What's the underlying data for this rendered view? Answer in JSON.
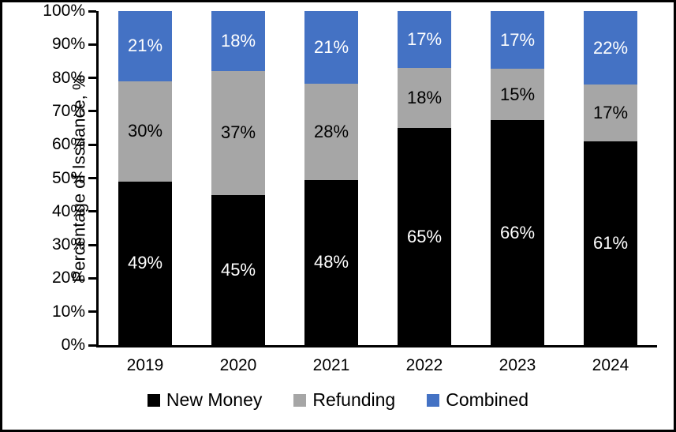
{
  "chart_data": {
    "type": "bar",
    "stacked": true,
    "title": "",
    "ylabel": "Percentage of Issuance, %",
    "xlabel": "",
    "ylim": [
      0,
      100
    ],
    "yticks": [
      "0%",
      "10%",
      "20%",
      "30%",
      "40%",
      "50%",
      "60%",
      "70%",
      "80%",
      "90%",
      "100%"
    ],
    "categories": [
      "2019",
      "2020",
      "2021",
      "2022",
      "2023",
      "2024"
    ],
    "series": [
      {
        "name": "New Money",
        "color": "#000000",
        "label_color": "#FFFFFF",
        "values": [
          49,
          45,
          48,
          65,
          66,
          61
        ],
        "labels": [
          "49%",
          "45%",
          "48%",
          "65%",
          "66%",
          "61%"
        ]
      },
      {
        "name": "Refunding",
        "color": "#A6A6A6",
        "label_color": "#000000",
        "values": [
          30,
          37,
          28,
          18,
          15,
          17
        ],
        "labels": [
          "30%",
          "37%",
          "28%",
          "18%",
          "15%",
          "17%"
        ]
      },
      {
        "name": "Combined",
        "color": "#4472C4",
        "label_color": "#FFFFFF",
        "values": [
          21,
          18,
          21,
          17,
          17,
          22
        ],
        "labels": [
          "21%",
          "18%",
          "21%",
          "17%",
          "17%",
          "22%"
        ]
      }
    ],
    "legend": {
      "position": "bottom",
      "entries": [
        "New Money",
        "Refunding",
        "Combined"
      ]
    },
    "grid": false,
    "axis_color": "#000000",
    "background": "#FFFFFF",
    "frame_border_color": "#000000"
  }
}
